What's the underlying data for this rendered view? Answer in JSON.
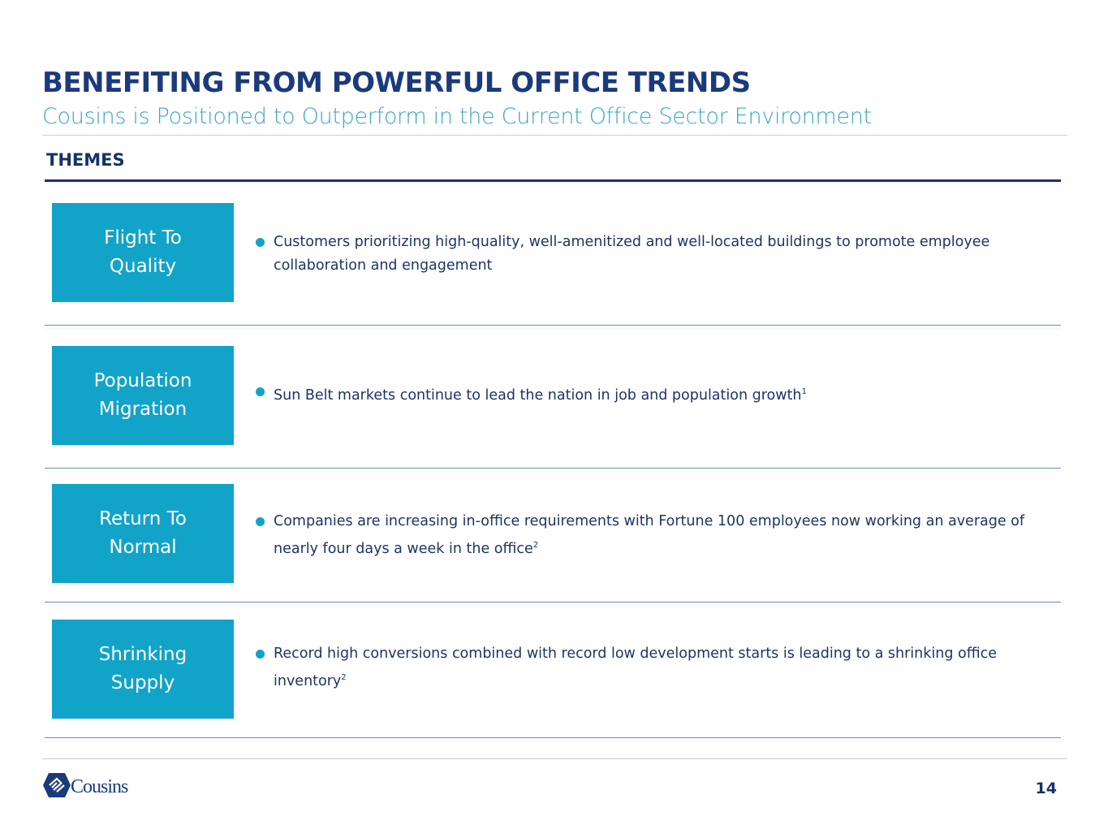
{
  "header": {
    "title": "BENEFITING FROM POWERFUL OFFICE TRENDS",
    "subtitle": "Cousins is Positioned to Outperform in the Current Office Sector Environment"
  },
  "section_label": "THEMES",
  "themes": [
    {
      "label": [
        "Flight To",
        "Quality"
      ],
      "text": "Customers prioritizing high-quality, well-amenitized and well-located buildings to promote employee collaboration and engagement",
      "footnote": null
    },
    {
      "label": [
        "Population",
        "Migration"
      ],
      "text": "Sun Belt markets continue to lead the nation in job and population growth",
      "footnote": "1"
    },
    {
      "label": [
        "Return To",
        "Normal"
      ],
      "text": "Companies are increasing in-office requirements with Fortune 100 employees now working an average of nearly four days a week in the office",
      "footnote": "2"
    },
    {
      "label": [
        "Shrinking",
        "Supply"
      ],
      "text": "Record high conversions combined with record low development starts is leading to a shrinking office inventory",
      "footnote": "2"
    }
  ],
  "footer": {
    "logo_text": "Cousins",
    "page_number": "14"
  }
}
